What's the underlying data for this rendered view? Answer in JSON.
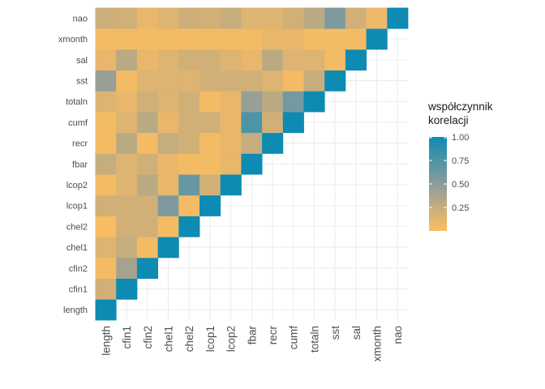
{
  "chart_data": {
    "type": "heatmap",
    "variables": [
      "length",
      "cfin1",
      "cfin2",
      "chel1",
      "chel2",
      "lcop1",
      "lcop2",
      "fbar",
      "recr",
      "cumf",
      "totaln",
      "sst",
      "sal",
      "xmonth",
      "nao"
    ],
    "values": [
      [
        1.0,
        0.2,
        0.05,
        0.15,
        0.03,
        0.2,
        0.05,
        0.25,
        0.05,
        0.05,
        0.15,
        0.45,
        0.1,
        0.05,
        0.22
      ],
      [
        null,
        1.0,
        0.4,
        0.25,
        0.2,
        0.2,
        0.15,
        0.15,
        0.3,
        0.15,
        0.1,
        0.05,
        0.3,
        0.05,
        0.2
      ],
      [
        null,
        null,
        1.0,
        0.05,
        0.2,
        0.2,
        0.3,
        0.2,
        0.05,
        0.3,
        0.2,
        0.15,
        0.1,
        0.05,
        0.1
      ],
      [
        null,
        null,
        null,
        1.0,
        0.05,
        0.55,
        0.1,
        0.1,
        0.25,
        0.1,
        0.15,
        0.15,
        0.15,
        0.05,
        0.15
      ],
      [
        null,
        null,
        null,
        null,
        1.0,
        0.05,
        0.65,
        0.05,
        0.2,
        0.2,
        0.2,
        0.15,
        0.2,
        0.05,
        0.22
      ],
      [
        null,
        null,
        null,
        null,
        null,
        1.0,
        0.2,
        0.05,
        0.05,
        0.2,
        0.05,
        0.2,
        0.2,
        0.05,
        0.2
      ],
      [
        null,
        null,
        null,
        null,
        null,
        null,
        1.0,
        0.1,
        0.1,
        0.1,
        0.1,
        0.2,
        0.15,
        0.05,
        0.25
      ],
      [
        null,
        null,
        null,
        null,
        null,
        null,
        null,
        1.0,
        0.25,
        0.75,
        0.45,
        0.2,
        0.1,
        0.05,
        0.15
      ],
      [
        null,
        null,
        null,
        null,
        null,
        null,
        null,
        null,
        1.0,
        0.2,
        0.3,
        0.15,
        0.3,
        0.1,
        0.15
      ],
      [
        null,
        null,
        null,
        null,
        null,
        null,
        null,
        null,
        null,
        1.0,
        0.6,
        0.05,
        0.15,
        0.1,
        0.2
      ],
      [
        null,
        null,
        null,
        null,
        null,
        null,
        null,
        null,
        null,
        null,
        1.0,
        0.25,
        0.15,
        0.05,
        0.3
      ],
      [
        null,
        null,
        null,
        null,
        null,
        null,
        null,
        null,
        null,
        null,
        null,
        1.0,
        0.05,
        0.05,
        0.55
      ],
      [
        null,
        null,
        null,
        null,
        null,
        null,
        null,
        null,
        null,
        null,
        null,
        null,
        1.0,
        0.05,
        0.2
      ],
      [
        null,
        null,
        null,
        null,
        null,
        null,
        null,
        null,
        null,
        null,
        null,
        null,
        null,
        1.0,
        0.08
      ],
      [
        null,
        null,
        null,
        null,
        null,
        null,
        null,
        null,
        null,
        null,
        null,
        null,
        null,
        null,
        1.0
      ]
    ],
    "legend": {
      "title_lines": [
        "współczynnik",
        "korelacji"
      ],
      "ticks": [
        "1.00",
        "0.75",
        "0.50",
        "0.25"
      ],
      "tick_values": [
        1.0,
        0.75,
        0.5,
        0.25
      ],
      "range": [
        0.0,
        1.0
      ],
      "placement": "right"
    },
    "colors": {
      "low": "#ffbe5f",
      "mid": "#8c9c9c",
      "high": "#0d8bb3"
    },
    "grid": true
  }
}
